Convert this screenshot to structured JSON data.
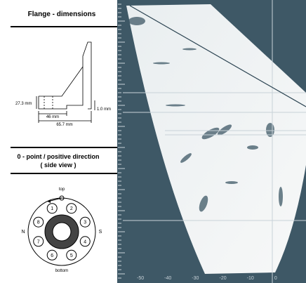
{
  "flange": {
    "title": "Flange - dimensions",
    "dims": {
      "height": "27.3 mm",
      "inner": "46 mm",
      "outer": "65.7 mm",
      "step": "1.0 mm"
    }
  },
  "orientation": {
    "title": "0 - point / positive direction",
    "subtitle": "( side view )",
    "top": "top",
    "bottom": "bottom",
    "left": "N",
    "right": "S",
    "holes": [
      "1",
      "2",
      "3",
      "4",
      "5",
      "6",
      "7",
      "8"
    ]
  },
  "scan": {
    "scale_labels": [
      "-50",
      "-40",
      "-30",
      "-20",
      "-10",
      "0"
    ]
  }
}
